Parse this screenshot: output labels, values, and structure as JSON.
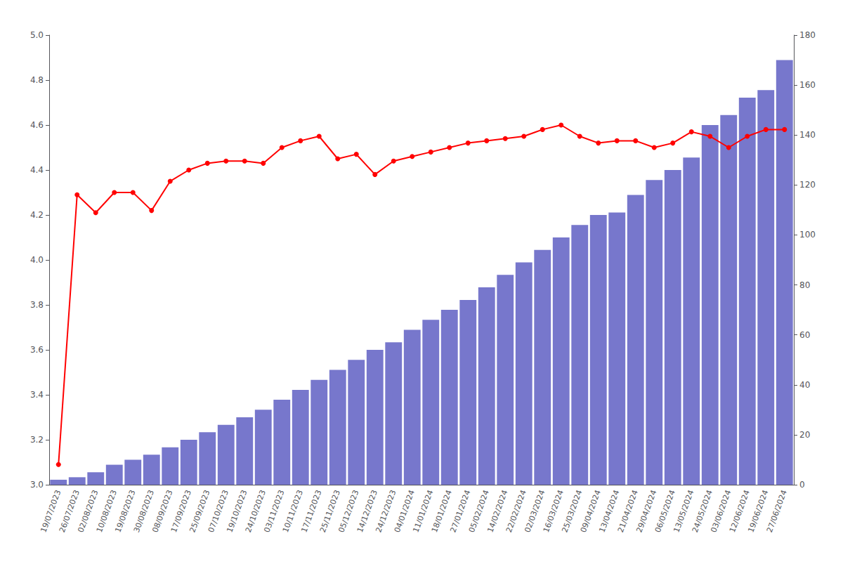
{
  "chart_data": {
    "type": "bar",
    "categories": [
      "19/07/2023",
      "26/07/2023",
      "02/08/2023",
      "10/08/2023",
      "19/08/2023",
      "30/08/2023",
      "08/09/2023",
      "17/09/2023",
      "25/09/2023",
      "07/10/2023",
      "19/10/2023",
      "24/10/2023",
      "03/11/2023",
      "10/11/2023",
      "17/11/2023",
      "25/11/2023",
      "05/12/2023",
      "14/12/2023",
      "24/12/2023",
      "04/01/2024",
      "11/01/2024",
      "18/01/2024",
      "27/01/2024",
      "05/02/2024",
      "14/02/2024",
      "22/02/2024",
      "02/03/2024",
      "16/03/2024",
      "25/03/2024",
      "09/04/2024",
      "13/04/2024",
      "21/04/2024",
      "29/04/2024",
      "06/05/2024",
      "13/05/2024",
      "24/05/2024",
      "03/06/2024",
      "12/06/2024",
      "19/06/2024",
      "27/06/2024"
    ],
    "ylim": [
      3.0,
      5.0
    ],
    "yticks": [
      {
        "value": 3.0,
        "label": "3.0"
      },
      3.2,
      3.4,
      3.6,
      3.8,
      {
        "value": 4.0,
        "label": "4.0"
      },
      4.2,
      4.4,
      4.6,
      4.8,
      {
        "value": 5.0,
        "label": "5.0"
      }
    ],
    "y2lim": [
      0,
      180
    ],
    "y2ticks": [
      0,
      20,
      40,
      60,
      80,
      100,
      120,
      140,
      160,
      180
    ],
    "grid": false,
    "series": [
      {
        "type": "bar",
        "axis": "y2",
        "color": "#7777cc",
        "values": [
          2,
          3,
          5,
          8,
          10,
          12,
          15,
          18,
          21,
          24,
          27,
          30,
          34,
          38,
          42,
          46,
          50,
          54,
          57,
          62,
          66,
          70,
          74,
          79,
          84,
          89,
          94,
          99,
          104,
          108,
          109,
          116,
          122,
          126,
          131,
          144,
          148,
          155,
          158,
          170
        ]
      },
      {
        "type": "line",
        "color": "#ff0000",
        "marker": "circle",
        "values": [
          3.09,
          4.29,
          4.21,
          4.3,
          4.3,
          4.22,
          4.35,
          4.4,
          4.43,
          4.44,
          4.44,
          4.43,
          4.5,
          4.53,
          4.55,
          4.45,
          4.47,
          4.38,
          4.44,
          4.46,
          4.48,
          4.5,
          4.52,
          4.53,
          4.54,
          4.55,
          4.58,
          4.6,
          4.55,
          4.52,
          4.53,
          4.53,
          4.5,
          4.52,
          4.57,
          4.55,
          4.5,
          4.55,
          4.58,
          4.58
        ]
      }
    ]
  }
}
